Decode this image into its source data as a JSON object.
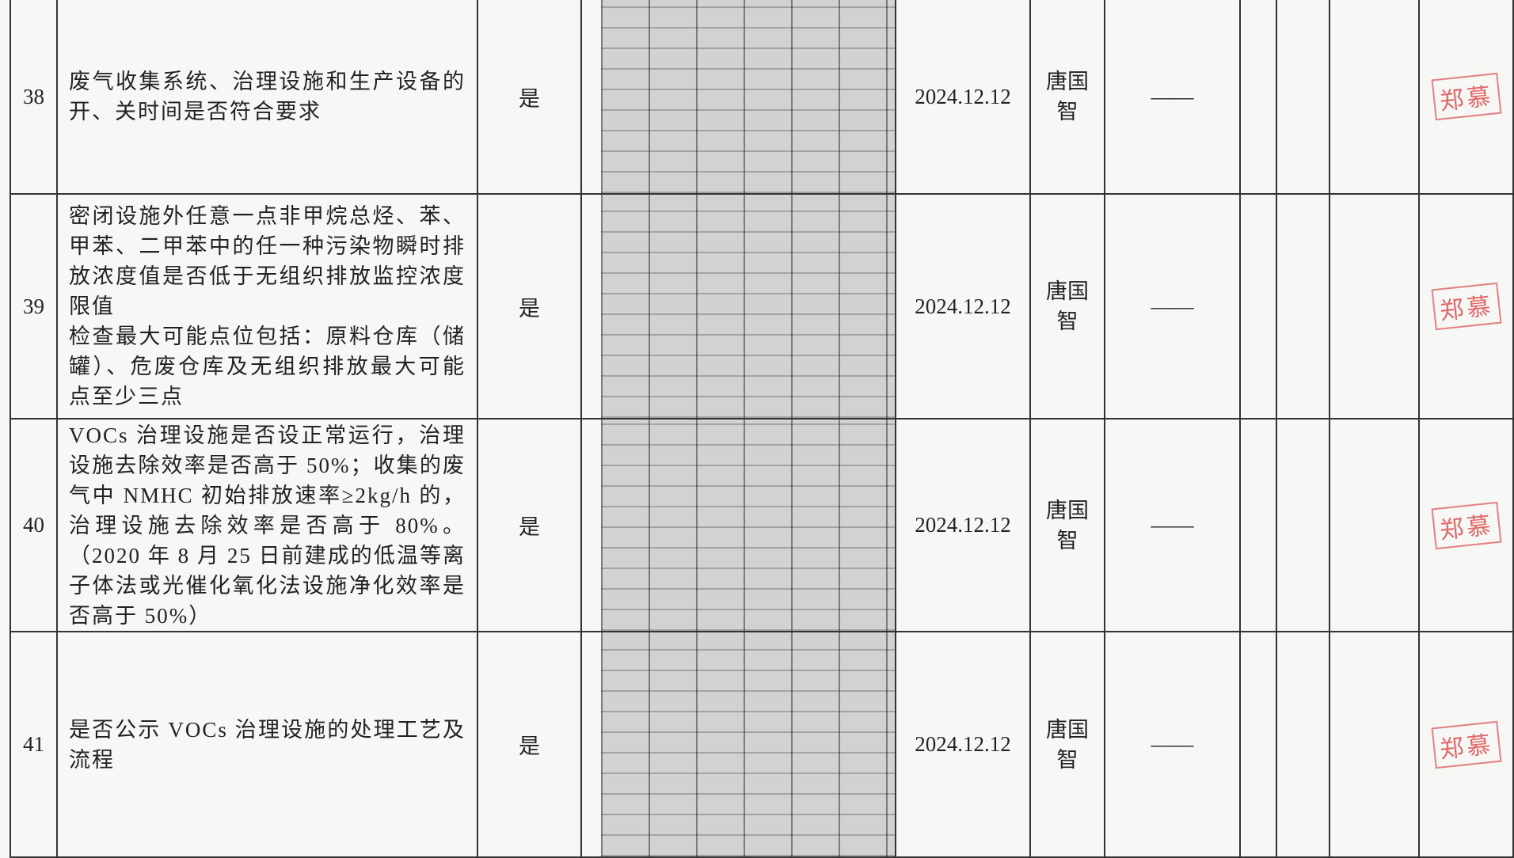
{
  "table": {
    "rows": [
      {
        "number": "38",
        "item": "废气收集系统、治理设施和生产设备的开、关时间是否符合要求",
        "result": "是",
        "date": "2024.12.12",
        "inspector": "唐国智",
        "note": "——",
        "stamp": "郑慕"
      },
      {
        "number": "39",
        "item": "密闭设施外任意一点非甲烷总烃、苯、甲苯、二甲苯中的任一种污染物瞬时排放浓度值是否低于无组织排放监控浓度限值\n检查最大可能点位包括：原料仓库（储罐）、危废仓库及无组织排放最大可能点至少三点",
        "result": "是",
        "date": "2024.12.12",
        "inspector": "唐国智",
        "note": "——",
        "stamp": "郑慕"
      },
      {
        "number": "40",
        "item": "VOCs 治理设施是否设正常运行，治理设施去除效率是否高于 50%；收集的废气中 NMHC 初始排放速率≥2kg/h 的，治理设施去除效率是否高于 80%。（2020 年 8 月 25 日前建成的低温等离子体法或光催化氧化法设施净化效率是否高于 50%）",
        "result": "是",
        "date": "2024.12.12",
        "inspector": "唐国智",
        "note": "——",
        "stamp": "郑慕"
      },
      {
        "number": "41",
        "item": "是否公示 VOCs 治理设施的处理工艺及流程",
        "result": "是",
        "date": "2024.12.12",
        "inspector": "唐国智",
        "note": "——",
        "stamp": "郑慕"
      }
    ]
  }
}
